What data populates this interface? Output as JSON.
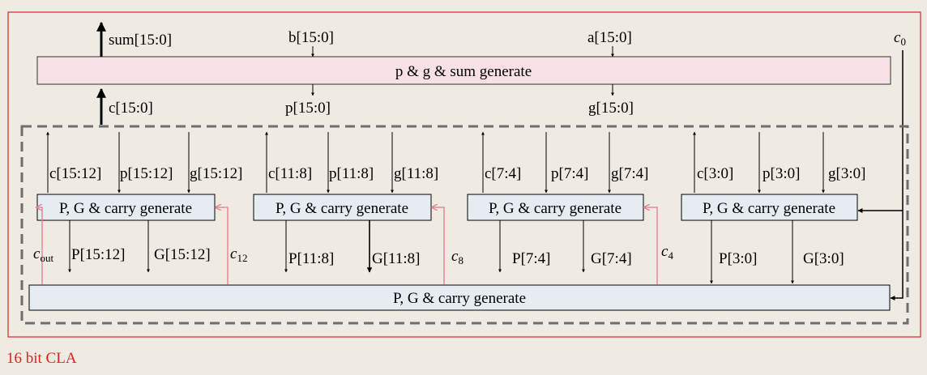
{
  "top_block": {
    "label": "p & g & sum generate"
  },
  "signals": {
    "sum": "sum[15:0]",
    "b": "b[15:0]",
    "a": "a[15:0]",
    "c": "c[15:0]",
    "p": "p[15:0]",
    "g": "g[15:0]",
    "c0": {
      "base": "c",
      "sub": "0"
    }
  },
  "groups": [
    {
      "c": "c[15:12]",
      "p": "p[15:12]",
      "g": "g[15:12]",
      "block": "P, G & carry generate",
      "P": "P[15:12]",
      "G": "G[15:12]"
    },
    {
      "c": "c[11:8]",
      "p": "p[11:8]",
      "g": "g[11:8]",
      "block": "P, G & carry generate",
      "P": "P[11:8]",
      "G": "G[11:8]"
    },
    {
      "c": "c[7:4]",
      "p": "p[7:4]",
      "g": "g[7:4]",
      "block": "P, G & carry generate",
      "P": "P[7:4]",
      "G": "G[7:4]"
    },
    {
      "c": "c[3:0]",
      "p": "p[3:0]",
      "g": "g[3:0]",
      "block": "P, G & carry generate",
      "P": "P[3:0]",
      "G": "G[3:0]"
    }
  ],
  "carries": {
    "cout": {
      "base": "c",
      "sub": "out"
    },
    "c12": {
      "base": "c",
      "sub": "12"
    },
    "c8": {
      "base": "c",
      "sub": "8"
    },
    "c4": {
      "base": "c",
      "sub": "4"
    }
  },
  "bottom_block": {
    "label": "P, G & carry generate"
  },
  "caption": "16 bit CLA",
  "colors": {
    "frame": "#e02020",
    "top_block_fill": "#f7e1e4",
    "block_fill": "#e6ecf2",
    "carry_wire": "#e07a88",
    "dashed_border": "#6e6e6e"
  }
}
